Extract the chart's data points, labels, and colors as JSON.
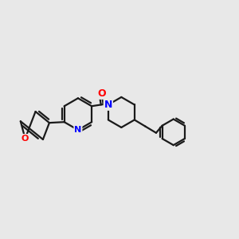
{
  "background_color": "#e8e8e8",
  "bond_color": "#1a1a1a",
  "N_color": "#0000ff",
  "O_color": "#ff0000",
  "bond_width": 1.6,
  "figsize": [
    3.0,
    3.0
  ],
  "dpi": 100,
  "xlim": [
    -3.0,
    3.5
  ],
  "ylim": [
    -2.0,
    1.8
  ]
}
